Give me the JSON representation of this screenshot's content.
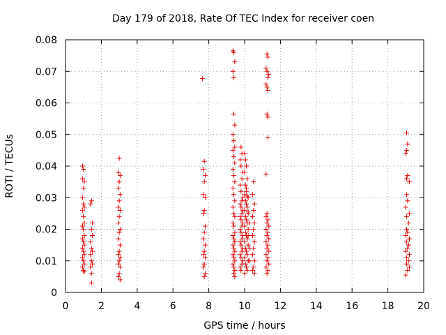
{
  "chart_data": {
    "type": "scatter",
    "title": "Day 179 of 2018, Rate Of TEC Index for receiver coen",
    "xlabel": "GPS time / hours",
    "ylabel": "ROTI / TECUs",
    "xlim": [
      0,
      20
    ],
    "ylim": [
      0,
      0.08
    ],
    "xticks": [
      0,
      2,
      4,
      6,
      8,
      10,
      12,
      14,
      16,
      18,
      20
    ],
    "yticks": [
      0,
      0.01,
      0.02,
      0.03,
      0.04,
      0.05,
      0.06,
      0.07,
      0.08
    ],
    "xtick_labels": [
      "0",
      "2",
      "4",
      "6",
      "8",
      "10",
      "12",
      "14",
      "16",
      "18",
      "20"
    ],
    "ytick_labels": [
      "0",
      "0.01",
      "0.02",
      "0.03",
      "0.04",
      "0.05",
      "0.06",
      "0.07",
      "0.08"
    ],
    "grid": true,
    "marker": "+",
    "color": "#e00000",
    "series": [
      {
        "name": "ROTI",
        "points": [
          [
            0.95,
            0.04
          ],
          [
            1.0,
            0.039
          ],
          [
            0.95,
            0.036
          ],
          [
            1.05,
            0.035
          ],
          [
            1.0,
            0.033
          ],
          [
            0.95,
            0.03
          ],
          [
            1.0,
            0.028
          ],
          [
            1.05,
            0.027
          ],
          [
            0.95,
            0.026
          ],
          [
            1.0,
            0.024
          ],
          [
            1.05,
            0.022
          ],
          [
            0.95,
            0.021
          ],
          [
            1.0,
            0.02
          ],
          [
            1.05,
            0.018
          ],
          [
            0.95,
            0.017
          ],
          [
            1.0,
            0.016
          ],
          [
            1.05,
            0.015
          ],
          [
            0.95,
            0.014
          ],
          [
            1.0,
            0.013
          ],
          [
            1.05,
            0.012
          ],
          [
            0.95,
            0.011
          ],
          [
            1.0,
            0.01
          ],
          [
            1.05,
            0.009
          ],
          [
            0.95,
            0.008
          ],
          [
            1.0,
            0.007
          ],
          [
            1.05,
            0.0065
          ],
          [
            1.45,
            0.029
          ],
          [
            1.4,
            0.028
          ],
          [
            1.5,
            0.022
          ],
          [
            1.45,
            0.02
          ],
          [
            1.5,
            0.018
          ],
          [
            1.4,
            0.016
          ],
          [
            1.45,
            0.014
          ],
          [
            1.5,
            0.013
          ],
          [
            1.4,
            0.012
          ],
          [
            1.45,
            0.01
          ],
          [
            1.5,
            0.009
          ],
          [
            1.4,
            0.008
          ],
          [
            1.45,
            0.006
          ],
          [
            1.45,
            0.003
          ],
          [
            3.0,
            0.0425
          ],
          [
            2.95,
            0.038
          ],
          [
            3.05,
            0.037
          ],
          [
            3.0,
            0.035
          ],
          [
            2.95,
            0.033
          ],
          [
            3.05,
            0.031
          ],
          [
            3.0,
            0.029
          ],
          [
            2.95,
            0.027
          ],
          [
            3.05,
            0.026
          ],
          [
            3.0,
            0.024
          ],
          [
            2.95,
            0.022
          ],
          [
            3.05,
            0.02
          ],
          [
            3.0,
            0.019
          ],
          [
            2.95,
            0.017
          ],
          [
            3.05,
            0.015
          ],
          [
            3.0,
            0.013
          ],
          [
            2.95,
            0.012
          ],
          [
            3.05,
            0.011
          ],
          [
            3.0,
            0.01
          ],
          [
            2.95,
            0.009
          ],
          [
            3.05,
            0.008
          ],
          [
            3.0,
            0.006
          ],
          [
            2.95,
            0.005
          ],
          [
            3.05,
            0.004
          ],
          [
            7.65,
            0.0677
          ],
          [
            7.75,
            0.0415
          ],
          [
            7.7,
            0.039
          ],
          [
            7.8,
            0.037
          ],
          [
            7.75,
            0.035
          ],
          [
            7.7,
            0.031
          ],
          [
            7.8,
            0.03
          ],
          [
            7.75,
            0.026
          ],
          [
            7.7,
            0.025
          ],
          [
            7.8,
            0.021
          ],
          [
            7.75,
            0.019
          ],
          [
            7.7,
            0.017
          ],
          [
            7.8,
            0.015
          ],
          [
            7.75,
            0.013
          ],
          [
            7.7,
            0.012
          ],
          [
            7.8,
            0.011
          ],
          [
            7.75,
            0.009
          ],
          [
            7.7,
            0.008
          ],
          [
            7.8,
            0.006
          ],
          [
            7.75,
            0.005
          ],
          [
            9.35,
            0.0765
          ],
          [
            9.4,
            0.076
          ],
          [
            9.45,
            0.073
          ],
          [
            9.35,
            0.07
          ],
          [
            9.4,
            0.068
          ],
          [
            9.4,
            0.0565
          ],
          [
            9.45,
            0.053
          ],
          [
            9.35,
            0.05
          ],
          [
            9.4,
            0.048
          ],
          [
            9.45,
            0.046
          ],
          [
            9.35,
            0.045
          ],
          [
            9.4,
            0.043
          ],
          [
            9.45,
            0.041
          ],
          [
            9.35,
            0.039
          ],
          [
            9.4,
            0.037
          ],
          [
            9.45,
            0.035
          ],
          [
            9.35,
            0.033
          ],
          [
            9.4,
            0.031
          ],
          [
            9.45,
            0.029
          ],
          [
            9.35,
            0.027
          ],
          [
            9.4,
            0.025
          ],
          [
            9.45,
            0.024
          ],
          [
            9.35,
            0.022
          ],
          [
            9.4,
            0.021
          ],
          [
            9.45,
            0.019
          ],
          [
            9.35,
            0.018
          ],
          [
            9.4,
            0.017
          ],
          [
            9.45,
            0.016
          ],
          [
            9.35,
            0.015
          ],
          [
            9.4,
            0.014
          ],
          [
            9.45,
            0.013
          ],
          [
            9.35,
            0.012
          ],
          [
            9.4,
            0.011
          ],
          [
            9.45,
            0.01
          ],
          [
            9.35,
            0.009
          ],
          [
            9.4,
            0.008
          ],
          [
            9.45,
            0.007
          ],
          [
            9.4,
            0.006
          ],
          [
            9.45,
            0.005
          ],
          [
            9.8,
            0.046
          ],
          [
            9.85,
            0.044
          ],
          [
            9.75,
            0.042
          ],
          [
            9.8,
            0.04
          ],
          [
            9.9,
            0.038
          ],
          [
            9.85,
            0.036
          ],
          [
            9.75,
            0.034
          ],
          [
            9.8,
            0.032
          ],
          [
            9.9,
            0.03
          ],
          [
            9.85,
            0.029
          ],
          [
            9.75,
            0.028
          ],
          [
            9.8,
            0.027
          ],
          [
            9.9,
            0.026
          ],
          [
            9.85,
            0.025
          ],
          [
            9.75,
            0.024
          ],
          [
            9.8,
            0.023
          ],
          [
            9.9,
            0.022
          ],
          [
            9.85,
            0.021
          ],
          [
            9.75,
            0.02
          ],
          [
            9.8,
            0.019
          ],
          [
            9.9,
            0.018
          ],
          [
            9.85,
            0.017
          ],
          [
            9.75,
            0.016
          ],
          [
            9.8,
            0.015
          ],
          [
            9.9,
            0.014
          ],
          [
            9.85,
            0.013
          ],
          [
            9.75,
            0.012
          ],
          [
            9.8,
            0.011
          ],
          [
            9.9,
            0.01
          ],
          [
            9.85,
            0.009
          ],
          [
            9.75,
            0.008
          ],
          [
            9.8,
            0.007
          ],
          [
            10.0,
            0.044
          ],
          [
            10.05,
            0.042
          ],
          [
            10.1,
            0.04
          ],
          [
            10.0,
            0.038
          ],
          [
            10.15,
            0.036
          ],
          [
            10.05,
            0.034
          ],
          [
            10.1,
            0.032
          ],
          [
            10.0,
            0.031
          ],
          [
            10.2,
            0.03
          ],
          [
            10.05,
            0.029
          ],
          [
            10.1,
            0.028
          ],
          [
            10.15,
            0.027
          ],
          [
            10.0,
            0.026
          ],
          [
            10.2,
            0.025
          ],
          [
            10.05,
            0.024
          ],
          [
            10.1,
            0.023
          ],
          [
            10.15,
            0.022
          ],
          [
            10.0,
            0.021
          ],
          [
            10.2,
            0.02
          ],
          [
            10.05,
            0.019
          ],
          [
            10.1,
            0.018
          ],
          [
            10.15,
            0.017
          ],
          [
            10.0,
            0.016
          ],
          [
            10.2,
            0.015
          ],
          [
            10.05,
            0.014
          ],
          [
            10.1,
            0.013
          ],
          [
            10.15,
            0.012
          ],
          [
            10.0,
            0.011
          ],
          [
            10.2,
            0.01
          ],
          [
            10.05,
            0.009
          ],
          [
            10.1,
            0.008
          ],
          [
            10.15,
            0.007
          ],
          [
            10.0,
            0.006
          ],
          [
            10.2,
            0.0255
          ],
          [
            10.25,
            0.022
          ],
          [
            10.2,
            0.018
          ],
          [
            10.3,
            0.014
          ],
          [
            10.25,
            0.01
          ],
          [
            10.1,
            0.033
          ],
          [
            10.15,
            0.0305
          ],
          [
            10.5,
            0.035
          ],
          [
            10.45,
            0.031
          ],
          [
            10.55,
            0.028
          ],
          [
            10.5,
            0.026
          ],
          [
            10.45,
            0.024
          ],
          [
            10.55,
            0.022
          ],
          [
            10.5,
            0.02
          ],
          [
            10.45,
            0.018
          ],
          [
            10.55,
            0.016
          ],
          [
            10.5,
            0.014
          ],
          [
            10.45,
            0.012
          ],
          [
            10.55,
            0.01
          ],
          [
            10.5,
            0.008
          ],
          [
            10.45,
            0.007
          ],
          [
            10.55,
            0.006
          ],
          [
            11.25,
            0.0755
          ],
          [
            11.3,
            0.0745
          ],
          [
            11.2,
            0.071
          ],
          [
            11.25,
            0.07
          ],
          [
            11.35,
            0.069
          ],
          [
            11.3,
            0.068
          ],
          [
            11.2,
            0.066
          ],
          [
            11.25,
            0.065
          ],
          [
            11.3,
            0.064
          ],
          [
            11.25,
            0.0565
          ],
          [
            11.3,
            0.0555
          ],
          [
            11.3,
            0.049
          ],
          [
            11.2,
            0.0375
          ],
          [
            11.25,
            0.025
          ],
          [
            11.2,
            0.024
          ],
          [
            11.3,
            0.023
          ],
          [
            11.25,
            0.022
          ],
          [
            11.35,
            0.021
          ],
          [
            11.2,
            0.02
          ],
          [
            11.3,
            0.019
          ],
          [
            11.25,
            0.018
          ],
          [
            11.35,
            0.017
          ],
          [
            11.2,
            0.016
          ],
          [
            11.3,
            0.015
          ],
          [
            11.25,
            0.014
          ],
          [
            11.35,
            0.013
          ],
          [
            11.2,
            0.012
          ],
          [
            11.3,
            0.011
          ],
          [
            11.25,
            0.01
          ],
          [
            11.35,
            0.009
          ],
          [
            11.2,
            0.008
          ],
          [
            11.3,
            0.007
          ],
          [
            11.25,
            0.006
          ],
          [
            19.05,
            0.0505
          ],
          [
            19.1,
            0.047
          ],
          [
            19.05,
            0.045
          ],
          [
            19.0,
            0.044
          ],
          [
            19.1,
            0.037
          ],
          [
            19.05,
            0.036
          ],
          [
            19.2,
            0.035
          ],
          [
            19.05,
            0.031
          ],
          [
            19.1,
            0.029
          ],
          [
            19.0,
            0.027
          ],
          [
            19.2,
            0.025
          ],
          [
            19.05,
            0.024
          ],
          [
            19.15,
            0.022
          ],
          [
            19.05,
            0.02
          ],
          [
            19.1,
            0.019
          ],
          [
            19.0,
            0.018
          ],
          [
            19.2,
            0.017
          ],
          [
            19.05,
            0.016
          ],
          [
            19.15,
            0.015
          ],
          [
            19.1,
            0.014
          ],
          [
            19.0,
            0.013
          ],
          [
            19.2,
            0.012
          ],
          [
            19.05,
            0.011
          ],
          [
            19.15,
            0.01
          ],
          [
            19.05,
            0.009
          ],
          [
            19.2,
            0.008
          ],
          [
            19.1,
            0.007
          ],
          [
            19.0,
            0.0055
          ]
        ]
      }
    ]
  }
}
